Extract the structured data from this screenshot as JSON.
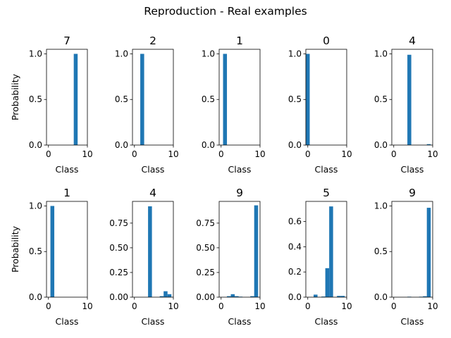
{
  "figure": {
    "title": "Reproduction - Real examples",
    "bar_color": "#1f77b4"
  },
  "chart_data": [
    {
      "type": "bar",
      "title": "7",
      "xlabel": "Class",
      "ylabel": "Probability",
      "xlim": [
        -0.5,
        10
      ],
      "ylim": [
        0,
        1.05
      ],
      "xticks": [
        0,
        10
      ],
      "yticks": [
        0.0,
        0.5,
        1.0
      ],
      "ytick_labels": [
        "0.0",
        "0.5",
        "1.0"
      ],
      "categories": [
        0,
        1,
        2,
        3,
        4,
        5,
        6,
        7,
        8,
        9
      ],
      "values": [
        0,
        0,
        0,
        0,
        0,
        0,
        0,
        1.0,
        0,
        0
      ]
    },
    {
      "type": "bar",
      "title": "2",
      "xlabel": "Class",
      "ylabel": "",
      "xlim": [
        -0.5,
        10
      ],
      "ylim": [
        0,
        1.05
      ],
      "xticks": [
        0,
        10
      ],
      "yticks": [
        0.0,
        0.5,
        1.0
      ],
      "ytick_labels": [
        "0.0",
        "0.5",
        "1.0"
      ],
      "categories": [
        0,
        1,
        2,
        3,
        4,
        5,
        6,
        7,
        8,
        9
      ],
      "values": [
        0,
        0,
        1.0,
        0,
        0,
        0,
        0,
        0,
        0,
        0
      ]
    },
    {
      "type": "bar",
      "title": "1",
      "xlabel": "Class",
      "ylabel": "",
      "xlim": [
        -0.5,
        10
      ],
      "ylim": [
        0,
        1.05
      ],
      "xticks": [
        0,
        10
      ],
      "yticks": [
        0.0,
        0.5,
        1.0
      ],
      "ytick_labels": [
        "0.0",
        "0.5",
        "1.0"
      ],
      "categories": [
        0,
        1,
        2,
        3,
        4,
        5,
        6,
        7,
        8,
        9
      ],
      "values": [
        0,
        1.0,
        0,
        0,
        0,
        0,
        0,
        0,
        0,
        0
      ]
    },
    {
      "type": "bar",
      "title": "0",
      "xlabel": "Class",
      "ylabel": "",
      "xlim": [
        -0.5,
        10
      ],
      "ylim": [
        0,
        1.05
      ],
      "xticks": [
        0,
        10
      ],
      "yticks": [
        0.0,
        0.5,
        1.0
      ],
      "ytick_labels": [
        "0.0",
        "0.5",
        "1.0"
      ],
      "categories": [
        0,
        1,
        2,
        3,
        4,
        5,
        6,
        7,
        8,
        9
      ],
      "values": [
        1.0,
        0,
        0,
        0,
        0,
        0,
        0,
        0,
        0,
        0
      ]
    },
    {
      "type": "bar",
      "title": "4",
      "xlabel": "Class",
      "ylabel": "",
      "xlim": [
        -0.5,
        10
      ],
      "ylim": [
        0,
        1.05
      ],
      "xticks": [
        0,
        10
      ],
      "yticks": [
        0.0,
        0.5,
        1.0
      ],
      "ytick_labels": [
        "0.0",
        "0.5",
        "1.0"
      ],
      "categories": [
        0,
        1,
        2,
        3,
        4,
        5,
        6,
        7,
        8,
        9
      ],
      "values": [
        0,
        0,
        0,
        0,
        0.99,
        0,
        0,
        0,
        0,
        0.01
      ]
    },
    {
      "type": "bar",
      "title": "1",
      "xlabel": "Class",
      "ylabel": "Probability",
      "xlim": [
        -0.5,
        10
      ],
      "ylim": [
        0,
        1.05
      ],
      "xticks": [
        0,
        10
      ],
      "yticks": [
        0.0,
        0.5,
        1.0
      ],
      "ytick_labels": [
        "0.0",
        "0.5",
        "1.0"
      ],
      "categories": [
        0,
        1,
        2,
        3,
        4,
        5,
        6,
        7,
        8,
        9
      ],
      "values": [
        0,
        1.0,
        0,
        0,
        0,
        0,
        0,
        0,
        0,
        0
      ]
    },
    {
      "type": "bar",
      "title": "4",
      "xlabel": "Class",
      "ylabel": "",
      "xlim": [
        -0.5,
        10
      ],
      "ylim": [
        0,
        0.97
      ],
      "xticks": [
        0,
        10
      ],
      "yticks": [
        0.0,
        0.25,
        0.5,
        0.75
      ],
      "ytick_labels": [
        "0.00",
        "0.25",
        "0.50",
        "0.75"
      ],
      "categories": [
        0,
        1,
        2,
        3,
        4,
        5,
        6,
        7,
        8,
        9
      ],
      "values": [
        0,
        0,
        0,
        0,
        0.92,
        0,
        0,
        0.01,
        0.06,
        0.03
      ]
    },
    {
      "type": "bar",
      "title": "9",
      "xlabel": "Class",
      "ylabel": "",
      "xlim": [
        -0.5,
        10
      ],
      "ylim": [
        0,
        0.97
      ],
      "xticks": [
        0,
        10
      ],
      "yticks": [
        0.0,
        0.25,
        0.5,
        0.75
      ],
      "ytick_labels": [
        "0.00",
        "0.25",
        "0.50",
        "0.75"
      ],
      "categories": [
        0,
        1,
        2,
        3,
        4,
        5,
        6,
        7,
        8,
        9
      ],
      "values": [
        0,
        0,
        0.01,
        0.03,
        0.01,
        0.005,
        0,
        0,
        0.01,
        0.93
      ]
    },
    {
      "type": "bar",
      "title": "5",
      "xlabel": "Class",
      "ylabel": "",
      "xlim": [
        -0.5,
        10
      ],
      "ylim": [
        0,
        0.76
      ],
      "xticks": [
        0,
        10
      ],
      "yticks": [
        0.0,
        0.2,
        0.4,
        0.6
      ],
      "ytick_labels": [
        "0.0",
        "0.2",
        "0.4",
        "0.6"
      ],
      "categories": [
        0,
        1,
        2,
        3,
        4,
        5,
        6,
        7,
        8,
        9
      ],
      "values": [
        0,
        0,
        0.02,
        0,
        0.005,
        0.23,
        0.72,
        0,
        0.01,
        0.01
      ]
    },
    {
      "type": "bar",
      "title": "9",
      "xlabel": "Class",
      "ylabel": "",
      "xlim": [
        -0.5,
        10
      ],
      "ylim": [
        0,
        1.05
      ],
      "xticks": [
        0,
        10
      ],
      "yticks": [
        0.0,
        0.5,
        1.0
      ],
      "ytick_labels": [
        "0.0",
        "0.5",
        "1.0"
      ],
      "categories": [
        0,
        1,
        2,
        3,
        4,
        5,
        6,
        7,
        8,
        9
      ],
      "values": [
        0,
        0,
        0,
        0,
        0.005,
        0,
        0,
        0.005,
        0.01,
        0.98
      ]
    }
  ]
}
